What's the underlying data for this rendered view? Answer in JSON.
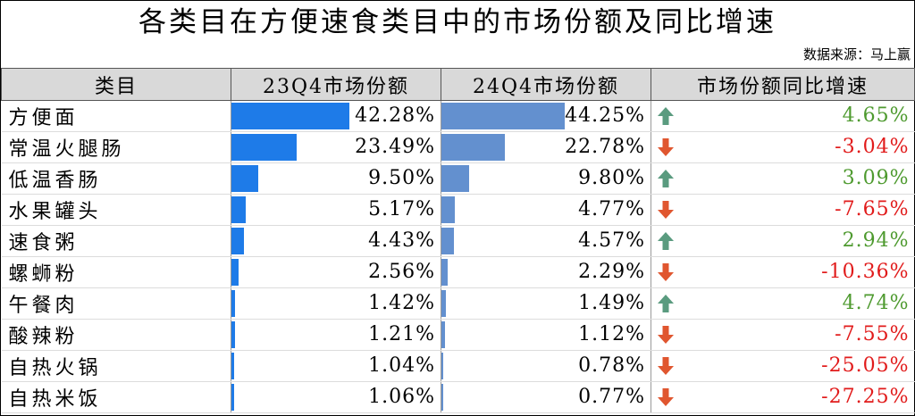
{
  "title": "各类目在方便速食类目中的市场份额及同比增速",
  "source": "数据来源：马上赢",
  "headers": [
    "类目",
    "23Q4市场份额",
    "24Q4市场份额",
    "市场份额同比增速"
  ],
  "colors": {
    "bar23": "#1e7be8",
    "bar24": "#6390cf",
    "up": "#4e9a2f",
    "down": "#e11b1b",
    "up_arrow": "#5a9b7f",
    "down_arrow": "#e0562f"
  },
  "chart_data": {
    "type": "table",
    "title": "各类目在方便速食类目中的市场份额及同比增速",
    "columns": [
      "类目",
      "23Q4市场份额",
      "24Q4市场份额",
      "市场份额同比增速"
    ],
    "rows": [
      {
        "category": "方便面",
        "q23": "42.28%",
        "q24": "44.25%",
        "growth": "4.65%",
        "v23": 42.28,
        "v24": 44.25,
        "g": 4.65
      },
      {
        "category": "常温火腿肠",
        "q23": "23.49%",
        "q24": "22.78%",
        "growth": "-3.04%",
        "v23": 23.49,
        "v24": 22.78,
        "g": -3.04
      },
      {
        "category": "低温香肠",
        "q23": "9.50%",
        "q24": "9.80%",
        "growth": "3.09%",
        "v23": 9.5,
        "v24": 9.8,
        "g": 3.09
      },
      {
        "category": "水果罐头",
        "q23": "5.17%",
        "q24": "4.77%",
        "growth": "-7.65%",
        "v23": 5.17,
        "v24": 4.77,
        "g": -7.65
      },
      {
        "category": "速食粥",
        "q23": "4.43%",
        "q24": "4.57%",
        "growth": "2.94%",
        "v23": 4.43,
        "v24": 4.57,
        "g": 2.94
      },
      {
        "category": "螺蛳粉",
        "q23": "2.56%",
        "q24": "2.29%",
        "growth": "-10.36%",
        "v23": 2.56,
        "v24": 2.29,
        "g": -10.36
      },
      {
        "category": "午餐肉",
        "q23": "1.42%",
        "q24": "1.49%",
        "growth": "4.74%",
        "v23": 1.42,
        "v24": 1.49,
        "g": 4.74
      },
      {
        "category": "酸辣粉",
        "q23": "1.21%",
        "q24": "1.12%",
        "growth": "-7.55%",
        "v23": 1.21,
        "v24": 1.12,
        "g": -7.55
      },
      {
        "category": "自热火锅",
        "q23": "1.04%",
        "q24": "0.78%",
        "growth": "-25.05%",
        "v23": 1.04,
        "v24": 0.78,
        "g": -25.05
      },
      {
        "category": "自热米饭",
        "q23": "1.06%",
        "q24": "0.77%",
        "growth": "-27.25%",
        "v23": 1.06,
        "v24": 0.77,
        "g": -27.25
      }
    ]
  }
}
